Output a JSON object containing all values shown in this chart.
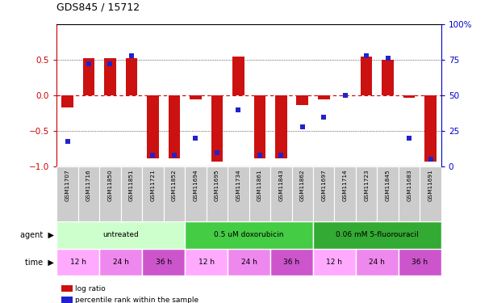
{
  "title": "GDS845 / 15712",
  "samples": [
    "GSM11707",
    "GSM11716",
    "GSM11850",
    "GSM11851",
    "GSM11721",
    "GSM11852",
    "GSM11694",
    "GSM11695",
    "GSM11734",
    "GSM11861",
    "GSM11843",
    "GSM11862",
    "GSM11697",
    "GSM11714",
    "GSM11723",
    "GSM11845",
    "GSM11683",
    "GSM11691"
  ],
  "log_ratio": [
    -0.17,
    0.52,
    0.52,
    0.52,
    -0.88,
    -0.88,
    -0.05,
    -0.93,
    0.55,
    -0.88,
    -0.88,
    -0.13,
    -0.05,
    0.0,
    0.55,
    0.5,
    -0.03,
    -0.93
  ],
  "percentile_pct": [
    18,
    72,
    72,
    78,
    8,
    8,
    20,
    10,
    40,
    8,
    8,
    28,
    35,
    50,
    78,
    76,
    20,
    5
  ],
  "bar_color": "#cc1111",
  "dot_color": "#2222cc",
  "zero_line_color": "#cc0000",
  "agents": [
    {
      "label": "untreated",
      "span": [
        0,
        6
      ],
      "color": "#ccffcc"
    },
    {
      "label": "0.5 uM doxorubicin",
      "span": [
        6,
        12
      ],
      "color": "#44cc44"
    },
    {
      "label": "0.06 mM 5-fluorouracil",
      "span": [
        12,
        18
      ],
      "color": "#33aa33"
    }
  ],
  "times": [
    {
      "label": "12 h",
      "span": [
        0,
        2
      ],
      "color": "#ffaaff"
    },
    {
      "label": "24 h",
      "span": [
        2,
        4
      ],
      "color": "#ee88ee"
    },
    {
      "label": "36 h",
      "span": [
        4,
        6
      ],
      "color": "#cc55cc"
    },
    {
      "label": "12 h",
      "span": [
        6,
        8
      ],
      "color": "#ffaaff"
    },
    {
      "label": "24 h",
      "span": [
        8,
        10
      ],
      "color": "#ee88ee"
    },
    {
      "label": "36 h",
      "span": [
        10,
        12
      ],
      "color": "#cc55cc"
    },
    {
      "label": "12 h",
      "span": [
        12,
        14
      ],
      "color": "#ffaaff"
    },
    {
      "label": "24 h",
      "span": [
        14,
        16
      ],
      "color": "#ee88ee"
    },
    {
      "label": "36 h",
      "span": [
        16,
        18
      ],
      "color": "#cc55cc"
    }
  ],
  "ylim_left": [
    -1.0,
    1.0
  ],
  "ylim_right": [
    0,
    100
  ],
  "yticks_left": [
    -1,
    -0.5,
    0,
    0.5
  ],
  "yticks_right": [
    0,
    25,
    50,
    75,
    100
  ],
  "legend_items": [
    {
      "label": "log ratio",
      "color": "#cc1111"
    },
    {
      "label": "percentile rank within the sample",
      "color": "#2222cc"
    }
  ],
  "bar_width": 0.55,
  "sample_row_color": "#cccccc",
  "tick_color_left": "#cc0000",
  "tick_color_right": "#0000cc"
}
